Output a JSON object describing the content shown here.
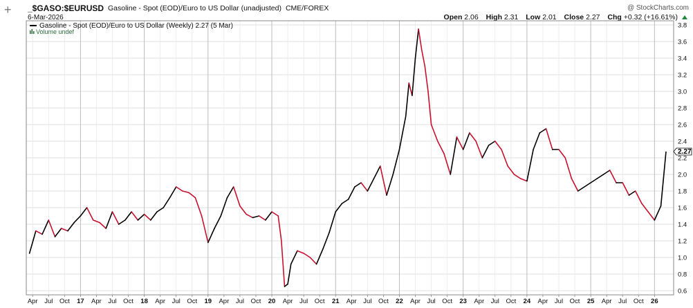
{
  "header": {
    "symbol": "_$GASO:$EURUSD",
    "description": "Gasoline - Spot (EOD)/Euro to US Dollar (unadjusted)",
    "exchange": "CME/FOREX",
    "date": "6-Mar-2026",
    "brand": "@ StockCharts.com",
    "plus_icon": "plus-icon"
  },
  "quote": {
    "open_label": "Open",
    "open": "2.06",
    "high_label": "High",
    "high": "2.31",
    "low_label": "Low",
    "low": "2.01",
    "close_label": "Close",
    "close": "2.27",
    "chg_label": "Chg",
    "chg": "+0.32 (+16.61%)",
    "chg_color": "#1e8a3c"
  },
  "legend": {
    "series_label": "Gasoline - Spot (EOD)/Euro to US Dollar (Weekly) 2.27 (5 Mar)",
    "volume_label": "Volume undef"
  },
  "colors": {
    "up": "#000000",
    "down": "#c8102e",
    "grid": "#d8d8d8",
    "axis": "#888888"
  },
  "chart_data": {
    "type": "line",
    "ylim": [
      0.55,
      3.85
    ],
    "y_ticks": [
      0.6,
      0.8,
      1.0,
      1.2,
      1.4,
      1.6,
      1.8,
      2.0,
      2.2,
      2.4,
      2.6,
      2.8,
      3.0,
      3.2,
      3.4,
      3.6,
      3.8
    ],
    "y_tick_labels": [
      "0.6",
      "0.8",
      "1.0",
      "1.2",
      "1.4",
      "1.6",
      "1.8",
      "2.0",
      "2.2",
      "2.4",
      "2.6",
      "2.8",
      "3.0",
      "3.2",
      "3.4",
      "3.6",
      "3.8"
    ],
    "x_ticks": [
      "Apr",
      "Jul",
      "Oct",
      "17",
      "Apr",
      "Jul",
      "Oct",
      "18",
      "Apr",
      "Jul",
      "Oct",
      "19",
      "Apr",
      "Jul",
      "Oct",
      "20",
      "Apr",
      "Jul",
      "Oct",
      "21",
      "Apr",
      "Jul",
      "Oct",
      "22",
      "Apr",
      "Jul",
      "Oct",
      "23",
      "Apr",
      "Jul",
      "Oct",
      "24",
      "Apr",
      "Jul",
      "Oct",
      "25",
      "Apr",
      "Jul",
      "Oct",
      "26"
    ],
    "year_lines": [
      "17",
      "18",
      "19",
      "20",
      "21",
      "22",
      "23",
      "24",
      "25",
      "26"
    ],
    "last_value_label": "2.27",
    "grid": true,
    "series": [
      {
        "name": "Gasoline - Spot (EOD)/Euro to US Dollar (Weekly)",
        "x": [
          2016.2,
          2016.3,
          2016.4,
          2016.5,
          2016.6,
          2016.7,
          2016.8,
          2016.9,
          2017.0,
          2017.1,
          2017.2,
          2017.3,
          2017.4,
          2017.5,
          2017.6,
          2017.7,
          2017.8,
          2017.9,
          2018.0,
          2018.1,
          2018.2,
          2018.3,
          2018.4,
          2018.5,
          2018.6,
          2018.7,
          2018.8,
          2018.9,
          2019.0,
          2019.1,
          2019.2,
          2019.3,
          2019.4,
          2019.5,
          2019.6,
          2019.7,
          2019.8,
          2019.9,
          2020.0,
          2020.1,
          2020.15,
          2020.2,
          2020.25,
          2020.3,
          2020.4,
          2020.5,
          2020.6,
          2020.7,
          2020.8,
          2020.9,
          2021.0,
          2021.1,
          2021.2,
          2021.3,
          2021.4,
          2021.5,
          2021.6,
          2021.7,
          2021.8,
          2021.9,
          2022.0,
          2022.1,
          2022.15,
          2022.2,
          2022.25,
          2022.3,
          2022.35,
          2022.4,
          2022.45,
          2022.5,
          2022.6,
          2022.7,
          2022.8,
          2022.9,
          2023.0,
          2023.1,
          2023.2,
          2023.3,
          2023.4,
          2023.5,
          2023.6,
          2023.7,
          2023.8,
          2023.9,
          2024.0,
          2024.1,
          2024.2,
          2024.3,
          2024.4,
          2024.5,
          2024.6,
          2024.7,
          2024.8,
          2024.9,
          2025.0,
          2025.1,
          2025.2,
          2025.3,
          2025.4,
          2025.5,
          2025.6,
          2025.7,
          2025.8,
          2025.9,
          2026.0,
          2026.1,
          2026.18
        ],
        "y": [
          1.05,
          1.32,
          1.28,
          1.45,
          1.25,
          1.35,
          1.32,
          1.42,
          1.5,
          1.6,
          1.45,
          1.42,
          1.35,
          1.55,
          1.4,
          1.45,
          1.55,
          1.45,
          1.52,
          1.45,
          1.55,
          1.6,
          1.72,
          1.85,
          1.8,
          1.78,
          1.72,
          1.5,
          1.18,
          1.35,
          1.5,
          1.72,
          1.85,
          1.62,
          1.52,
          1.48,
          1.5,
          1.45,
          1.55,
          1.5,
          1.2,
          0.65,
          0.68,
          0.92,
          1.08,
          1.05,
          1.0,
          0.92,
          1.1,
          1.3,
          1.55,
          1.65,
          1.7,
          1.85,
          1.9,
          1.8,
          1.95,
          2.1,
          1.75,
          2.0,
          2.3,
          2.7,
          3.1,
          2.95,
          3.4,
          3.75,
          3.5,
          3.3,
          3.0,
          2.6,
          2.4,
          2.25,
          2.0,
          2.45,
          2.3,
          2.5,
          2.4,
          2.2,
          2.35,
          2.4,
          2.3,
          2.1,
          2.0,
          1.95,
          1.92,
          2.3,
          2.5,
          2.55,
          2.3,
          2.3,
          2.2,
          1.95,
          1.8,
          1.85,
          1.9,
          1.95,
          2.0,
          2.05,
          1.9,
          1.9,
          1.75,
          1.8,
          1.65,
          1.55,
          1.45,
          1.62,
          2.27
        ]
      }
    ]
  }
}
